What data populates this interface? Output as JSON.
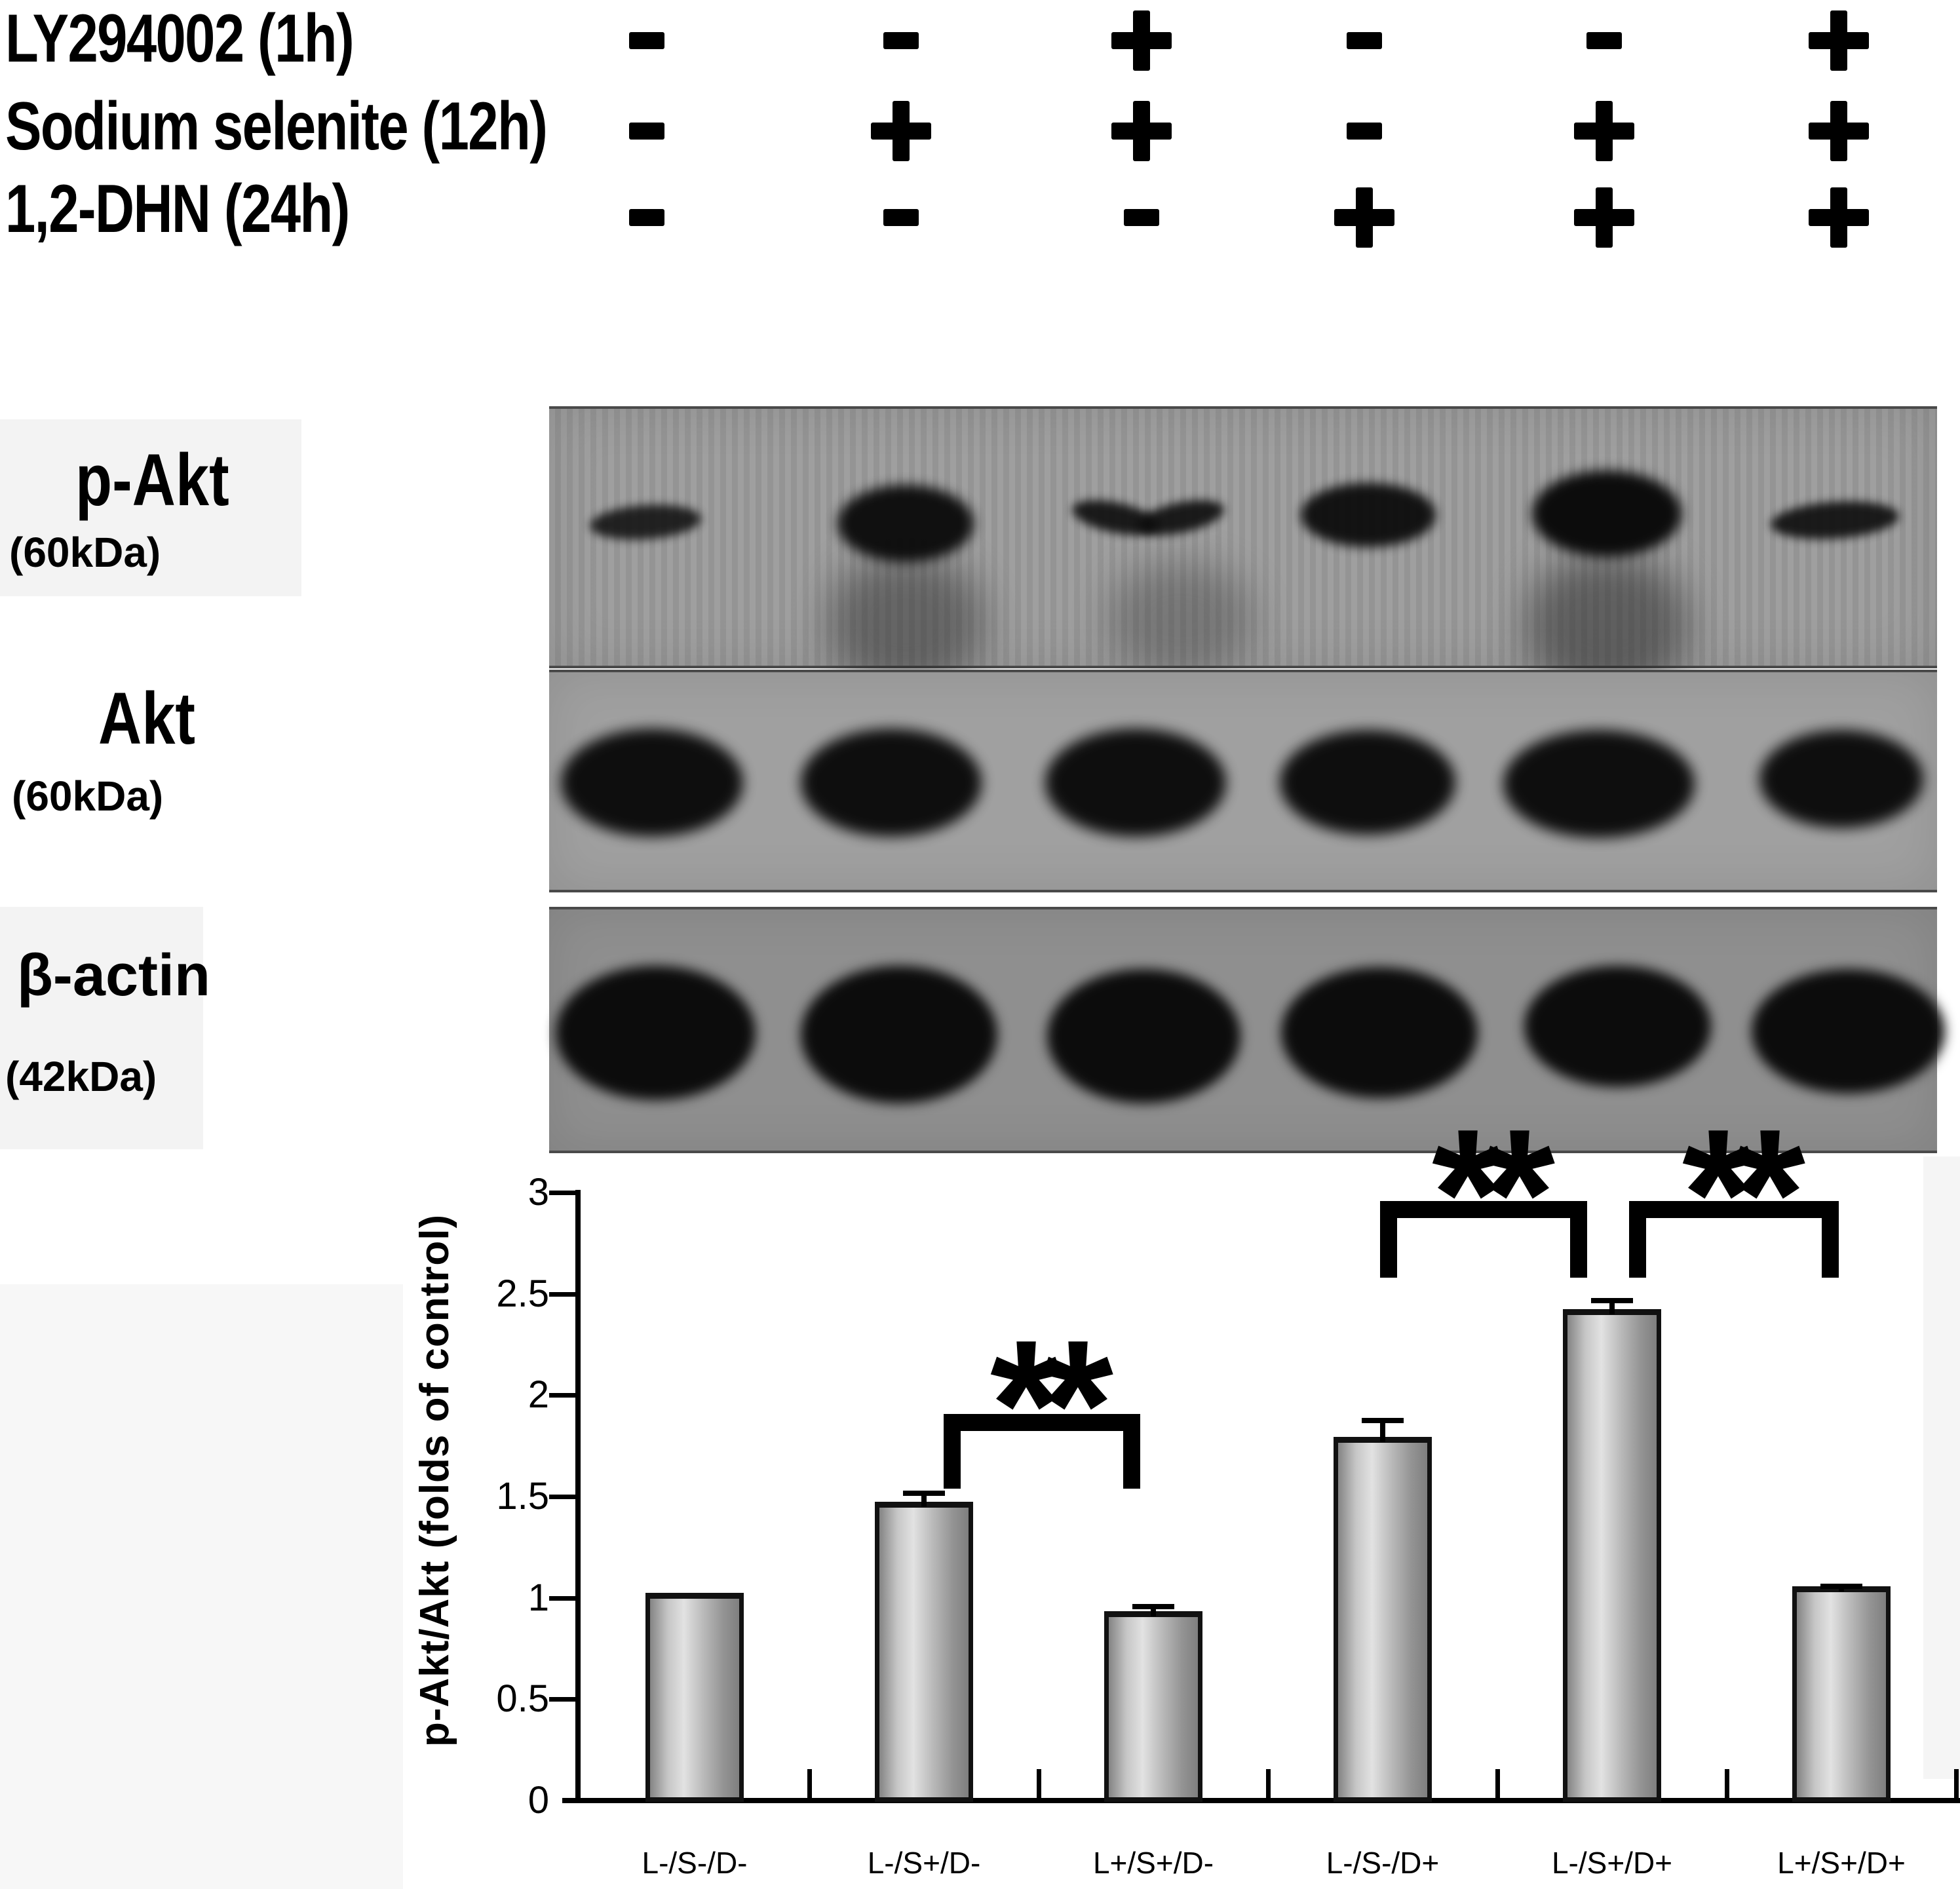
{
  "treatments": {
    "rows": [
      {
        "label": "LY294002 (1h)",
        "signs": [
          "-",
          "-",
          "+",
          "-",
          "-",
          "+"
        ]
      },
      {
        "label": "Sodium selenite (12h)",
        "signs": [
          "-",
          "+",
          "+",
          "-",
          "+",
          "+"
        ]
      },
      {
        "label": "1,2-DHN (24h)",
        "signs": [
          "-",
          "-",
          "-",
          "+",
          "+",
          "+"
        ]
      }
    ]
  },
  "blots": [
    {
      "label": "p-Akt",
      "kda": "(60kDa)",
      "band_intensities": [
        "weak",
        "strong",
        "medium wavy",
        "strong",
        "very strong",
        "medium"
      ]
    },
    {
      "label": "Akt",
      "kda": "(60kDa)",
      "band_intensities": [
        "strong",
        "strong",
        "strong",
        "strong",
        "strong",
        "strong"
      ]
    },
    {
      "label": "β-actin",
      "kda": "(42kDa)",
      "band_intensities": [
        "strong",
        "strong",
        "strong",
        "strong",
        "strong",
        "strong"
      ]
    }
  ],
  "chart_data": {
    "type": "bar",
    "categories": [
      "L-/S-/D-",
      "L-/S+/D-",
      "L+/S+/D-",
      "L-/S-/D+",
      "L-/S+/D+",
      "L+/S+/D+"
    ],
    "values": [
      1.0,
      1.45,
      0.91,
      1.77,
      2.4,
      1.03
    ],
    "errors_upper": [
      0,
      0.06,
      0.04,
      0.1,
      0.06,
      0.02
    ],
    "title": "",
    "xlabel": "",
    "ylabel": "p-Akt/Akt (folds of control)",
    "ylim": [
      0,
      3
    ],
    "yticks": [
      0,
      0.5,
      1,
      1.5,
      2,
      2.5,
      3
    ],
    "ytick_labels": [
      "0",
      "0.5",
      "1",
      "1.5",
      "2",
      "2.5",
      "3"
    ],
    "grid": false,
    "legend": false,
    "bar_fill": "#c0c0c0",
    "bar_edge": "#111111",
    "significance": [
      {
        "pair": [
          "L-/S+/D-",
          "L+/S+/D-"
        ],
        "label": "**"
      },
      {
        "pair": [
          "L-/S-/D+",
          "L-/S+/D+"
        ],
        "label": "**"
      },
      {
        "pair": [
          "L-/S+/D+",
          "L+/S+/D+"
        ],
        "label": "**"
      }
    ]
  }
}
